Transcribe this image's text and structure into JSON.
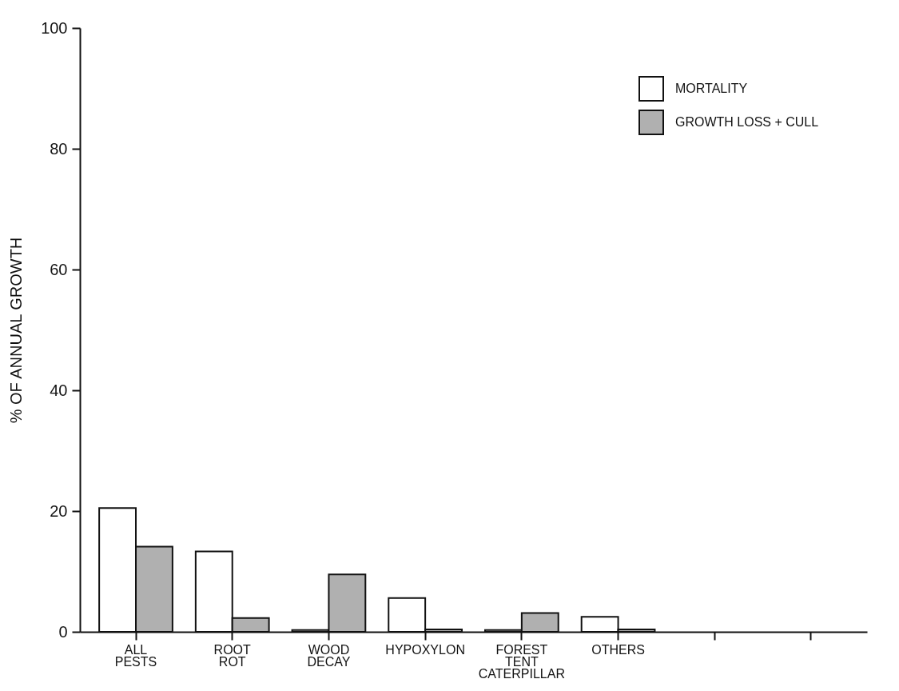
{
  "chart_data": {
    "type": "bar",
    "ylabel": "% OF ANNUAL GROWTH",
    "categories": [
      "ALL PESTS",
      "ROOT ROT",
      "WOOD DECAY",
      "HYPOXYLON",
      "FOREST TENT CATERPILLAR",
      "OTHERS",
      null,
      null
    ],
    "series": [
      {
        "name": "MORTALITY",
        "color": "#ffffff",
        "values": [
          20.5,
          13.3,
          0.3,
          5.6,
          0.3,
          2.5,
          null,
          null
        ]
      },
      {
        "name": "GROWTH LOSS + CULL",
        "color": "#b0b0b0",
        "values": [
          14.1,
          2.3,
          9.5,
          0.4,
          3.1,
          0.4,
          null,
          null
        ]
      }
    ],
    "ylim": [
      0,
      100
    ],
    "yticks": [
      0,
      20,
      40,
      60,
      80,
      100
    ],
    "grid": false,
    "legend": "top right"
  }
}
